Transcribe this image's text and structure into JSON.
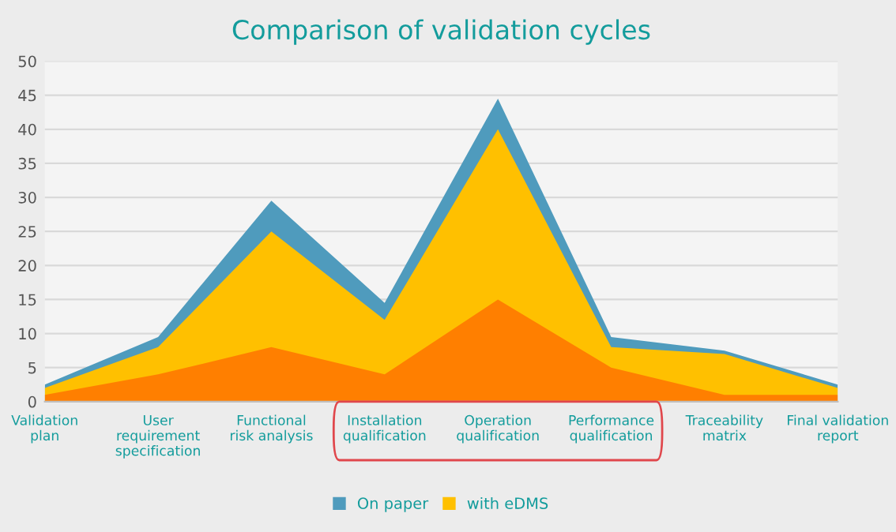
{
  "chart_data": {
    "type": "area",
    "title": "Comparison of validation cycles",
    "categories": [
      "Validation\nplan",
      "User\nrequirement\nspecification",
      "Functional\nrisk analysis",
      "Installation\nqualification",
      "Operation\nqualification",
      "Performance\nqualification",
      "Traceability\nmatrix",
      "Final validation\nreport"
    ],
    "series": [
      {
        "name": "On paper",
        "color": "#4f9bbd",
        "values": [
          2.5,
          9.5,
          29.5,
          14.5,
          44.5,
          9.5,
          7.5,
          2.5
        ]
      },
      {
        "name": "with eDMS",
        "color": "#ffc000",
        "values": [
          2,
          8,
          25,
          12,
          40,
          8,
          7,
          2
        ]
      },
      {
        "color": "#ff7f00",
        "values": [
          1,
          4,
          8,
          4,
          15,
          5,
          1,
          1
        ]
      }
    ],
    "ylim": [
      0,
      50
    ],
    "yticks": [
      0,
      5,
      10,
      15,
      20,
      25,
      30,
      35,
      40,
      45,
      50
    ],
    "grid": "y",
    "legend": "bottom"
  }
}
